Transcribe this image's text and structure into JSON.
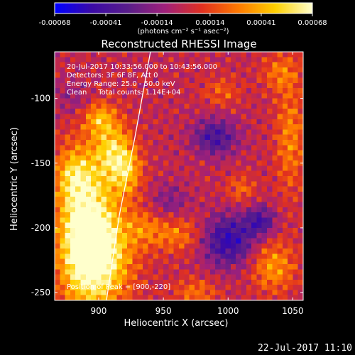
{
  "chart_data": {
    "type": "heatmap",
    "title": "Reconstructed RHESSI Image",
    "xlabel": "Heliocentric X (arcsec)",
    "ylabel": "Heliocentric Y (arcsec)",
    "xlim": [
      866,
      1058
    ],
    "ylim": [
      -256,
      -64
    ],
    "x_ticks": [
      "900",
      "950",
      "1000",
      "1050"
    ],
    "x_tick_values": [
      900,
      950,
      1000,
      1050
    ],
    "y_ticks": [
      "-100",
      "-150",
      "-200",
      "-250"
    ],
    "y_tick_values": [
      -100,
      -150,
      -200,
      -250
    ],
    "colorbar": {
      "ticks": [
        "-0.00068",
        "-0.00041",
        "-0.00014",
        "0.00014",
        "0.00041",
        "0.00068"
      ],
      "tick_values": [
        -0.00068,
        -0.00041,
        -0.00014,
        0.00014,
        0.00041,
        0.00068
      ],
      "range": [
        -0.00068,
        0.00068
      ],
      "unit_label": "(photons cm⁻² s⁻¹ asec⁻²)",
      "colors": [
        "#0000ff",
        "#3b0aa6",
        "#5a1e8a",
        "#a0207a",
        "#e03020",
        "#ff7a00",
        "#ffd000",
        "#ffffcc"
      ]
    },
    "annotations": {
      "time": "20-Jul-2017 10:33:56.000 to 10:43:56.000",
      "detectors": "Detectors: 3F 6F 8F, Att 0",
      "energy": "Energy Range: 25.0 - 50.0 keV",
      "clean": "Clean     Total counts: 1.14E+04",
      "peak": "Position of Peak = [900,-220]"
    },
    "peak": {
      "x": 900,
      "y": -220
    },
    "limb": [
      [
        940,
        -64
      ],
      [
        928,
        -130
      ],
      [
        916,
        -190
      ],
      [
        906,
        -256
      ]
    ],
    "sources": [
      {
        "x": 900,
        "y": -220,
        "v": 0.00068,
        "sx": 18,
        "sy": 28
      },
      {
        "x": 888,
        "y": -195,
        "v": 0.00052,
        "sx": 14,
        "sy": 40
      },
      {
        "x": 910,
        "y": -140,
        "v": 0.00045,
        "sx": 10,
        "sy": 18
      },
      {
        "x": 922,
        "y": -155,
        "v": 0.0004,
        "sx": 8,
        "sy": 14
      },
      {
        "x": 900,
        "y": -115,
        "v": 0.00032,
        "sx": 8,
        "sy": 8
      },
      {
        "x": 880,
        "y": -160,
        "v": 0.0003,
        "sx": 10,
        "sy": 14
      },
      {
        "x": 935,
        "y": -200,
        "v": 0.0002,
        "sx": 10,
        "sy": 10
      },
      {
        "x": 1035,
        "y": -230,
        "v": 0.00035,
        "sx": 12,
        "sy": 14
      },
      {
        "x": 1048,
        "y": -130,
        "v": 0.0003,
        "sx": 8,
        "sy": 30
      },
      {
        "x": 960,
        "y": -205,
        "v": 0.00028,
        "sx": 14,
        "sy": 10
      },
      {
        "x": 1010,
        "y": -170,
        "v": 0.00022,
        "sx": 8,
        "sy": 8
      },
      {
        "x": 995,
        "y": -95,
        "v": 0.0002,
        "sx": 10,
        "sy": 8
      },
      {
        "x": 1040,
        "y": -80,
        "v": 0.00025,
        "sx": 10,
        "sy": 10
      },
      {
        "x": 975,
        "y": -250,
        "v": 0.00025,
        "sx": 12,
        "sy": 8
      },
      {
        "x": 990,
        "y": -130,
        "v": -0.0004,
        "sx": 12,
        "sy": 10
      },
      {
        "x": 1000,
        "y": -210,
        "v": -0.0005,
        "sx": 14,
        "sy": 14
      },
      {
        "x": 1025,
        "y": -195,
        "v": -0.0004,
        "sx": 8,
        "sy": 8
      },
      {
        "x": 955,
        "y": -180,
        "v": -0.0002,
        "sx": 10,
        "sy": 10
      },
      {
        "x": 880,
        "y": -100,
        "v": -0.00015,
        "sx": 10,
        "sy": 10
      }
    ]
  },
  "footer": {
    "timestamp": "22-Jul-2017 11:10"
  }
}
